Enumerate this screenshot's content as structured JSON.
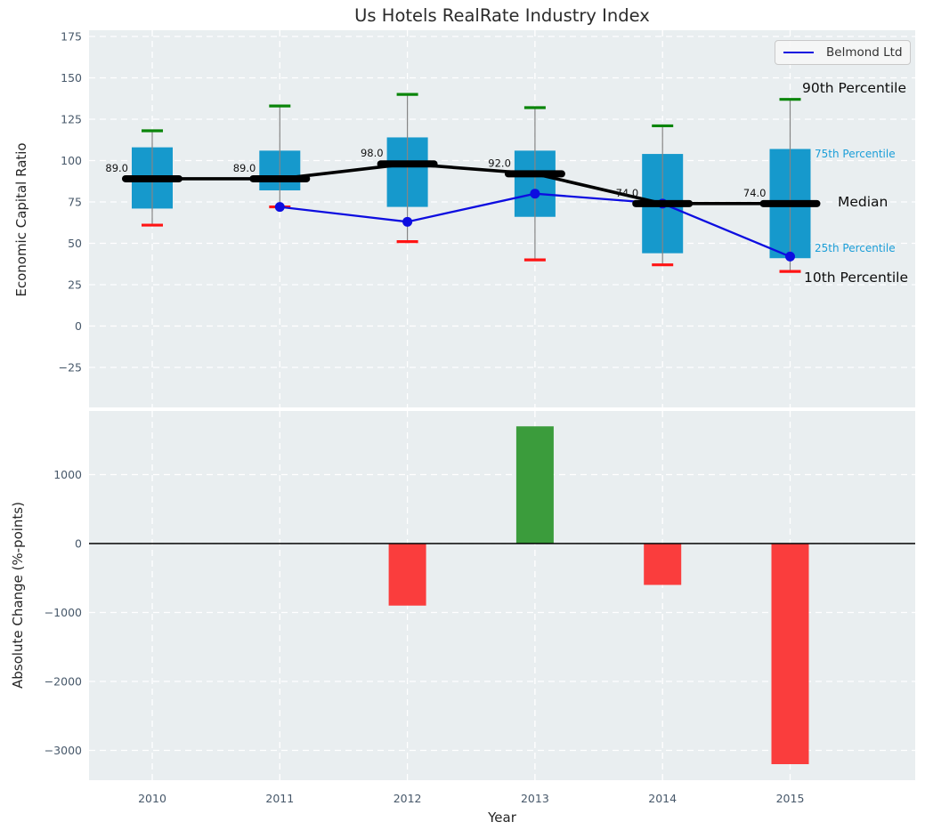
{
  "title": "Us Hotels RealRate Industry Index",
  "legend": {
    "label": "Belmond Ltd"
  },
  "right_labels": {
    "p90": "90th Percentile",
    "p75": "75th Percentile",
    "median": "Median",
    "p25": "25th Percentile",
    "p10": "10th Percentile"
  },
  "chart_data": {
    "type": "boxplot+line+bar",
    "categories": [
      "2010",
      "2011",
      "2012",
      "2013",
      "2014",
      "2015"
    ],
    "xlabel": "Year",
    "top_panel": {
      "ylabel": "Economic Capital Ratio",
      "yticks": [
        175,
        150,
        125,
        100,
        75,
        50,
        25,
        0,
        -25
      ],
      "ylim": [
        -49.2,
        178.8
      ],
      "grid": true,
      "boxplot": {
        "p10": [
          61,
          72,
          51,
          40,
          37,
          33
        ],
        "p25": [
          71,
          82,
          72,
          66,
          44,
          41
        ],
        "median": [
          89,
          89,
          98,
          92,
          74,
          74
        ],
        "p75": [
          108,
          106,
          114,
          106,
          104,
          107
        ],
        "p90": [
          118,
          133,
          140,
          132,
          121,
          137
        ]
      },
      "median_annotations": [
        "89.0",
        "89.0",
        "98.0",
        "92.0",
        "74.0",
        "74.0"
      ],
      "line_series": {
        "name": "Belmond Ltd",
        "values": [
          null,
          72,
          63,
          80,
          74,
          42
        ]
      }
    },
    "bottom_panel": {
      "ylabel": "Absolute Change (%-points)",
      "yticks": [
        1000,
        0,
        -1000,
        -2000,
        -3000
      ],
      "ylim": [
        -3432,
        1922
      ],
      "grid": true,
      "bar_series": {
        "name": "Absolute Change",
        "values": [
          null,
          null,
          -900,
          1700,
          -600,
          -3200
        ]
      }
    },
    "legend_position": "upper right"
  },
  "colors": {
    "box_fill": "#1699cc",
    "whisker": "#858585",
    "cap_top": "#0a850a",
    "cap_bottom": "#ff1414",
    "median_line": "#000000",
    "belmond_line": "#0d0de0",
    "bar_positive": "#3b9c3c",
    "bar_negative": "#fa3d3d",
    "axes_bg": "#e9eef0",
    "grid": "#ffffff",
    "tick_label": "#47586a",
    "annotation": "#111111",
    "zero_line": "#000000"
  }
}
